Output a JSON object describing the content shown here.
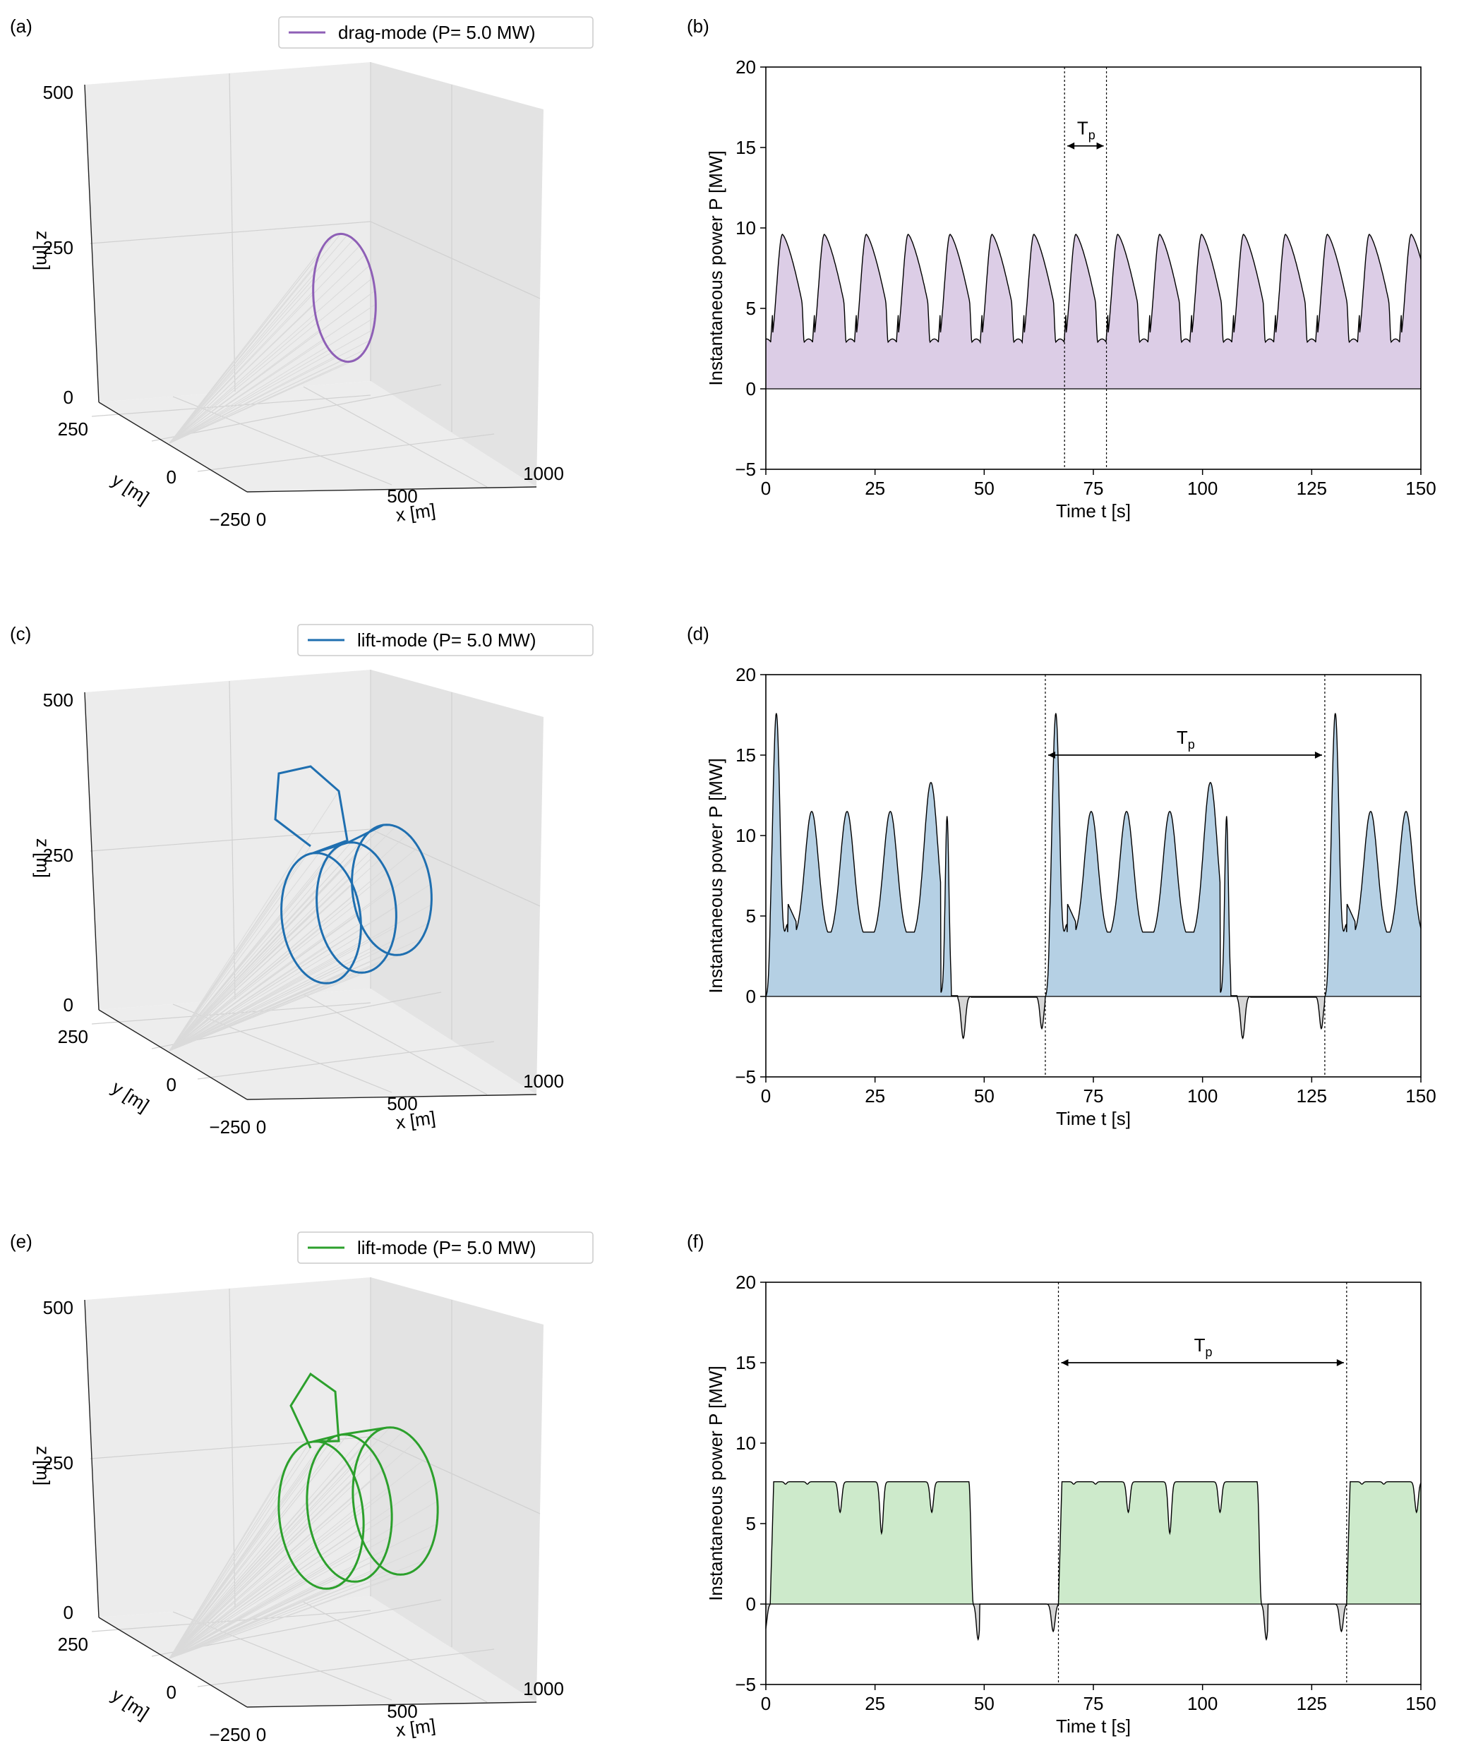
{
  "figure": {
    "panel_labels": [
      "(a)",
      "(b)",
      "(c)",
      "(d)",
      "(e)",
      "(f)"
    ]
  },
  "axis3d": {
    "x_label": "x [m]",
    "y_label": "y [m]",
    "z_label": "z [m]",
    "x_ticks": [
      "0",
      "500",
      "1000"
    ],
    "y_ticks": [
      "250",
      "0",
      "−250"
    ],
    "z_ticks": [
      "0",
      "250",
      "500"
    ]
  },
  "colors": {
    "drag": "#8e5fb6",
    "lift_c": "#1f6fb0",
    "lift_e": "#2ca02c",
    "fill_drag": "#dccde6",
    "fill_lift_c": "#b5d0e4",
    "fill_lift_e": "#cdeacb",
    "fill_negative": "#d6d6d6"
  },
  "chart_data": [
    {
      "panel": "a",
      "type": "3d-line",
      "legend": "drag-mode (P= 5.0 MW)",
      "color": "#8e5fb6",
      "xlim": [
        0,
        1000
      ],
      "ylim": [
        -250,
        250
      ],
      "zlim": [
        0,
        500
      ]
    },
    {
      "panel": "b",
      "type": "area",
      "title": "",
      "xlabel": "Time t [s]",
      "ylabel": "Instantaneous power P [MW]",
      "xlim": [
        0,
        150
      ],
      "ylim": [
        -5,
        20
      ],
      "xticks": [
        0,
        25,
        50,
        75,
        100,
        125,
        150
      ],
      "yticks": [
        -5,
        0,
        5,
        10,
        15,
        20
      ],
      "period_label": "Tp",
      "period_start": 68.4,
      "period_end": 78.0,
      "profile": "drag",
      "cycle_period": 9.6,
      "peak": 9.6,
      "min": 2.9,
      "fill": "#dccde6"
    },
    {
      "panel": "c",
      "type": "3d-line",
      "legend": "lift-mode (P= 5.0 MW)",
      "color": "#1f6fb0",
      "xlim": [
        0,
        1000
      ],
      "ylim": [
        -250,
        250
      ],
      "zlim": [
        0,
        500
      ]
    },
    {
      "panel": "d",
      "type": "area",
      "xlabel": "Time t [s]",
      "ylabel": "Instantaneous power P [MW]",
      "xlim": [
        0,
        150
      ],
      "ylim": [
        -5,
        20
      ],
      "xticks": [
        0,
        25,
        50,
        75,
        100,
        125,
        150
      ],
      "yticks": [
        -5,
        0,
        5,
        10,
        15,
        20
      ],
      "period_label": "Tp",
      "period_start": 64.0,
      "period_end": 128.0,
      "profile": "lift_c",
      "cycle_period": 64.0,
      "first_peak": 17.6,
      "loop_peak": 11.5,
      "retraction_min": -2.6,
      "fill": "#b5d0e4"
    },
    {
      "panel": "e",
      "type": "3d-line",
      "legend": "lift-mode (P= 5.0 MW)",
      "color": "#2ca02c",
      "xlim": [
        0,
        1000
      ],
      "ylim": [
        -250,
        250
      ],
      "zlim": [
        0,
        500
      ]
    },
    {
      "panel": "f",
      "type": "area",
      "xlabel": "Time t [s]",
      "ylabel": "Instantaneous power P [MW]",
      "xlim": [
        0,
        150
      ],
      "ylim": [
        -5,
        20
      ],
      "xticks": [
        0,
        25,
        50,
        75,
        100,
        125,
        150
      ],
      "yticks": [
        -5,
        0,
        5,
        10,
        15,
        20
      ],
      "period_label": "Tp",
      "period_start": 67.0,
      "period_end": 133.0,
      "profile": "lift_e",
      "cycle_period": 66.0,
      "plateau": 7.6,
      "retraction_min": -2.2,
      "fill": "#cdeacb"
    }
  ]
}
